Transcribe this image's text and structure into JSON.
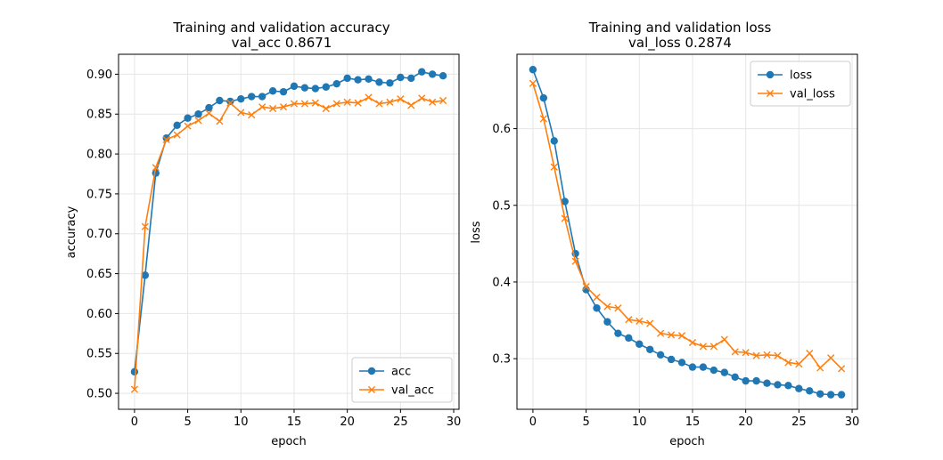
{
  "chart_data": [
    {
      "type": "line",
      "title": "Training and validation accuracy",
      "subtitle": "val_acc 0.8671",
      "xlabel": "epoch",
      "ylabel": "accuracy",
      "xlim": [
        -1.5,
        30.5
      ],
      "ylim": [
        0.48,
        0.925
      ],
      "xticks": [
        0,
        5,
        10,
        15,
        20,
        25,
        30
      ],
      "yticks": [
        0.5,
        0.55,
        0.6,
        0.65,
        0.7,
        0.75,
        0.8,
        0.85,
        0.9
      ],
      "ytick_decimals": 2,
      "grid": true,
      "legend_position": "lower-right",
      "x": [
        0,
        1,
        2,
        3,
        4,
        5,
        6,
        7,
        8,
        9,
        10,
        11,
        12,
        13,
        14,
        15,
        16,
        17,
        18,
        19,
        20,
        21,
        22,
        23,
        24,
        25,
        26,
        27,
        28,
        29
      ],
      "series": [
        {
          "name": "acc",
          "color": "#1f77b4",
          "marker": "circle",
          "values": [
            0.527,
            0.648,
            0.776,
            0.82,
            0.836,
            0.845,
            0.85,
            0.858,
            0.867,
            0.866,
            0.869,
            0.872,
            0.872,
            0.879,
            0.878,
            0.885,
            0.883,
            0.882,
            0.884,
            0.888,
            0.895,
            0.893,
            0.894,
            0.89,
            0.889,
            0.896,
            0.895,
            0.903,
            0.9,
            0.898
          ]
        },
        {
          "name": "val_acc",
          "color": "#ff7f0e",
          "marker": "x",
          "values": [
            0.505,
            0.709,
            0.783,
            0.818,
            0.824,
            0.835,
            0.842,
            0.851,
            0.841,
            0.864,
            0.852,
            0.849,
            0.859,
            0.857,
            0.859,
            0.863,
            0.863,
            0.864,
            0.857,
            0.863,
            0.865,
            0.864,
            0.871,
            0.863,
            0.865,
            0.869,
            0.861,
            0.87,
            0.865,
            0.867
          ]
        }
      ]
    },
    {
      "type": "line",
      "title": "Training and validation loss",
      "subtitle": "val_loss 0.2874",
      "xlabel": "epoch",
      "ylabel": "loss",
      "xlim": [
        -1.5,
        30.5
      ],
      "ylim": [
        0.234,
        0.697
      ],
      "xticks": [
        0,
        5,
        10,
        15,
        20,
        25,
        30
      ],
      "yticks": [
        0.3,
        0.4,
        0.5,
        0.6
      ],
      "ytick_decimals": 1,
      "grid": true,
      "legend_position": "upper-right",
      "x": [
        0,
        1,
        2,
        3,
        4,
        5,
        6,
        7,
        8,
        9,
        10,
        11,
        12,
        13,
        14,
        15,
        16,
        17,
        18,
        19,
        20,
        21,
        22,
        23,
        24,
        25,
        26,
        27,
        28,
        29
      ],
      "series": [
        {
          "name": "loss",
          "color": "#1f77b4",
          "marker": "circle",
          "values": [
            0.677,
            0.64,
            0.584,
            0.505,
            0.437,
            0.39,
            0.366,
            0.348,
            0.333,
            0.327,
            0.319,
            0.312,
            0.305,
            0.299,
            0.295,
            0.289,
            0.289,
            0.285,
            0.282,
            0.276,
            0.271,
            0.271,
            0.268,
            0.266,
            0.265,
            0.261,
            0.258,
            0.254,
            0.253,
            0.253
          ]
        },
        {
          "name": "val_loss",
          "color": "#ff7f0e",
          "marker": "x",
          "values": [
            0.659,
            0.613,
            0.55,
            0.483,
            0.427,
            0.394,
            0.38,
            0.368,
            0.366,
            0.351,
            0.349,
            0.346,
            0.333,
            0.331,
            0.33,
            0.321,
            0.316,
            0.316,
            0.325,
            0.309,
            0.308,
            0.304,
            0.305,
            0.304,
            0.295,
            0.293,
            0.307,
            0.288,
            0.301,
            0.287
          ]
        }
      ]
    }
  ]
}
